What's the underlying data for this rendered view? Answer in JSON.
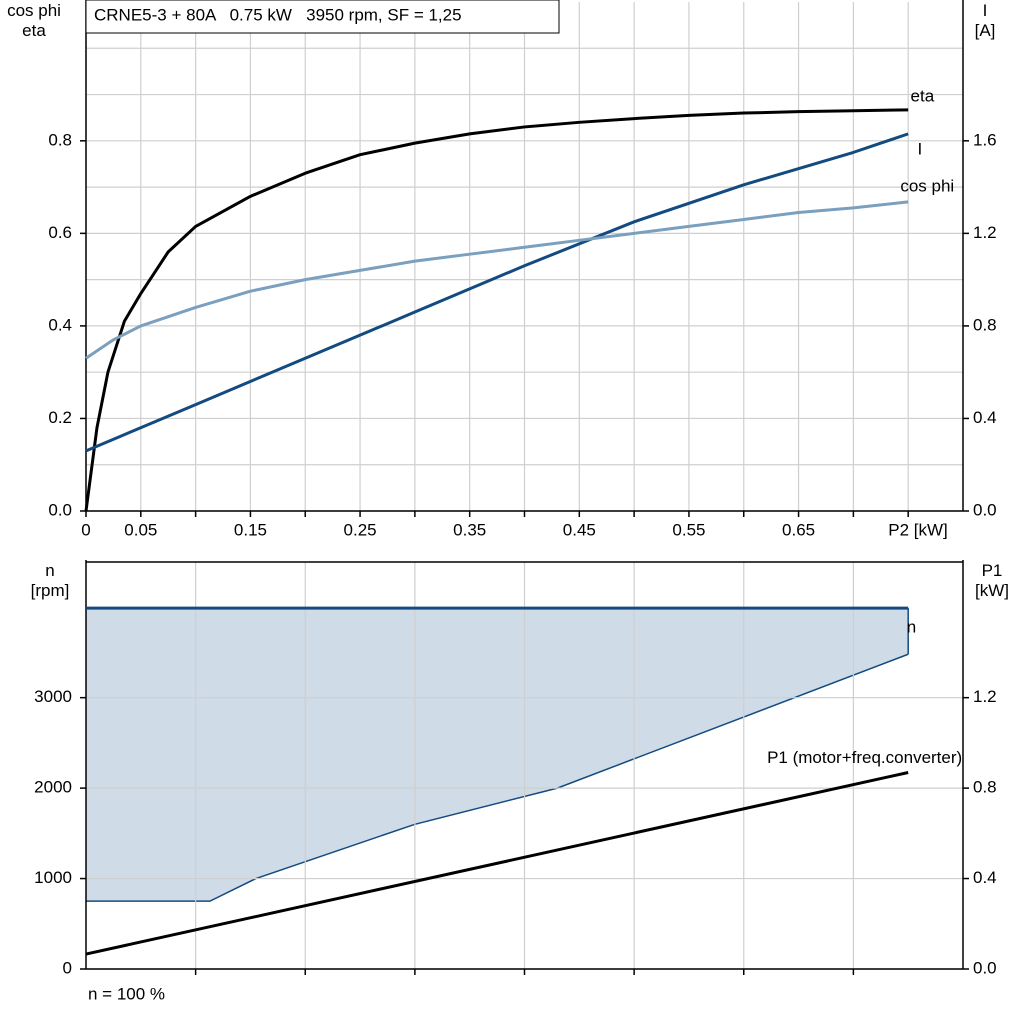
{
  "chart_data": [
    {
      "type": "line",
      "title": "CRNE5-3 + 80A   0.75 kW   3950 rpm, SF = 1,25",
      "ylabel": [
        "cos phi",
        "eta"
      ],
      "y2label": [
        "I",
        "[A]"
      ],
      "xlabel": "P2 [kW]",
      "xlim": [
        0,
        0.8
      ],
      "xticks": [
        0,
        0.05,
        0.15,
        0.25,
        0.35,
        0.45,
        0.55,
        0.65
      ],
      "xminor": [
        0.1,
        0.2,
        0.3,
        0.4,
        0.5,
        0.6,
        0.7,
        0.75
      ],
      "ylim": [
        0,
        1.1
      ],
      "yticks": [
        {
          "value": 0,
          "label": "0.0"
        },
        0.2,
        0.4,
        0.6,
        0.8
      ],
      "yminor": [
        0.1,
        0.3,
        0.5,
        0.7,
        0.9,
        1.0
      ],
      "y2lim": [
        0,
        2.2
      ],
      "y2ticks": [
        {
          "value": 0,
          "label": "0.0"
        },
        0.4,
        0.8,
        1.2,
        1.6
      ],
      "grid": true,
      "series": [
        {
          "name": "eta",
          "color": "#000000",
          "x": [
            0,
            0.01,
            0.02,
            0.035,
            0.05,
            0.075,
            0.1,
            0.15,
            0.2,
            0.25,
            0.3,
            0.35,
            0.4,
            0.45,
            0.5,
            0.55,
            0.6,
            0.65,
            0.7,
            0.75
          ],
          "values": [
            0,
            0.18,
            0.3,
            0.41,
            0.47,
            0.56,
            0.615,
            0.68,
            0.73,
            0.77,
            0.795,
            0.815,
            0.83,
            0.84,
            0.848,
            0.855,
            0.86,
            0.863,
            0.865,
            0.867
          ]
        },
        {
          "name": "I",
          "color": "#134a7f",
          "axis": "y2",
          "x": [
            0,
            0.1,
            0.2,
            0.3,
            0.4,
            0.5,
            0.6,
            0.7,
            0.75
          ],
          "values": [
            0.26,
            0.46,
            0.66,
            0.86,
            1.06,
            1.25,
            1.41,
            1.55,
            1.63
          ]
        },
        {
          "name": "cos phi",
          "color": "#7a9fbf",
          "x": [
            0,
            0.025,
            0.05,
            0.1,
            0.15,
            0.2,
            0.25,
            0.3,
            0.35,
            0.4,
            0.45,
            0.5,
            0.55,
            0.6,
            0.65,
            0.7,
            0.75
          ],
          "values": [
            0.33,
            0.37,
            0.4,
            0.44,
            0.475,
            0.5,
            0.52,
            0.54,
            0.555,
            0.57,
            0.585,
            0.6,
            0.615,
            0.63,
            0.645,
            0.655,
            0.668
          ]
        }
      ]
    },
    {
      "type": "line",
      "ylabel": [
        "n",
        "[rpm]"
      ],
      "y2label": [
        "P1",
        "[kW]"
      ],
      "note": "n = 100 %",
      "xlim": [
        0,
        0.8
      ],
      "xminor": [
        0.1,
        0.2,
        0.3,
        0.4,
        0.5,
        0.6,
        0.7
      ],
      "ylim": [
        0,
        4500
      ],
      "yticks": [
        0,
        1000,
        2000,
        3000
      ],
      "y2lim": [
        0,
        1.8
      ],
      "y2ticks": [
        {
          "value": 0,
          "label": "0.0"
        },
        0.4,
        0.8,
        1.2
      ],
      "grid": true,
      "area_color": "#cfdbe7",
      "area_lower": {
        "color": "#134a7f",
        "x": [
          0,
          0.113,
          0.155,
          0.3,
          0.43,
          0.75
        ],
        "values": [
          750,
          750,
          1000,
          1600,
          2000,
          3480
        ]
      },
      "series": [
        {
          "name": "n",
          "color": "#134a7f",
          "x": [
            0,
            0.75
          ],
          "values": [
            3990,
            3990
          ]
        },
        {
          "name": "P1 (motor+freq.converter)",
          "color": "#000000",
          "axis": "y2",
          "x": [
            0,
            0.75
          ],
          "values": [
            0.066,
            0.869
          ]
        }
      ]
    }
  ]
}
